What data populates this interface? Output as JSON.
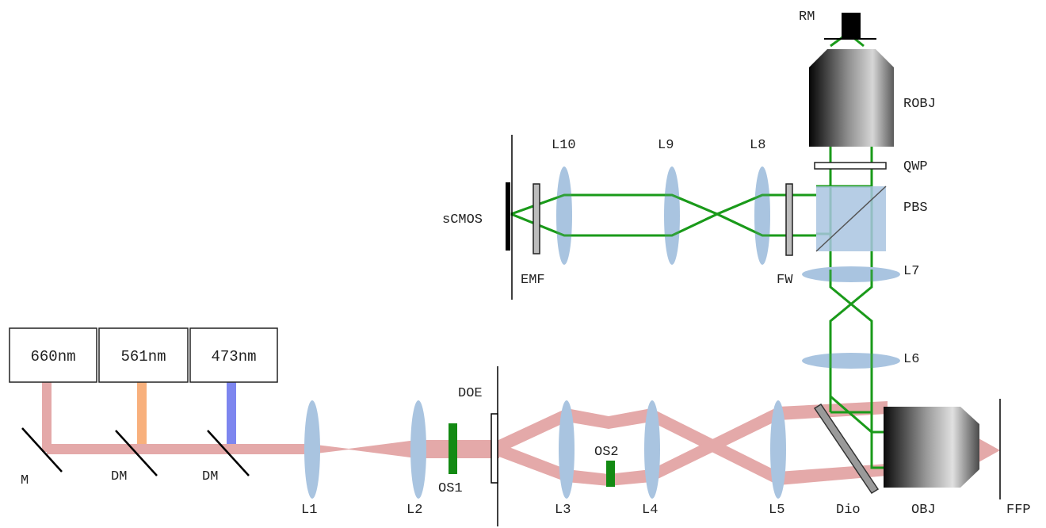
{
  "lasers": [
    {
      "label": "660nm",
      "color": "#e4a9a9"
    },
    {
      "label": "561nm",
      "color": "#f8b07c"
    },
    {
      "label": "473nm",
      "color": "#7d86ef"
    }
  ],
  "labels": {
    "M": "M",
    "DM1": "DM",
    "DM2": "DM",
    "L1": "L1",
    "L2": "L2",
    "OS1": "OS1",
    "DOE": "DOE",
    "L3": "L3",
    "OS2": "OS2",
    "L4": "L4",
    "L5": "L5",
    "Dio": "Dio",
    "OBJ": "OBJ",
    "FFP": "FFP",
    "L6": "L6",
    "L7": "L7",
    "FW": "FW",
    "PBS": "PBS",
    "QWP": "QWP",
    "ROBJ": "ROBJ",
    "RM": "RM",
    "L8": "L8",
    "L9": "L9",
    "L10": "L10",
    "EMF": "EMF",
    "sCMOS": "sCMOS"
  },
  "colors": {
    "excitation_beam": "#e4a9a9",
    "detection_path": "#1a9a1a",
    "lens": "#a9c4e0",
    "pbs": "#a9c4e0",
    "aperture": "#138a13"
  }
}
